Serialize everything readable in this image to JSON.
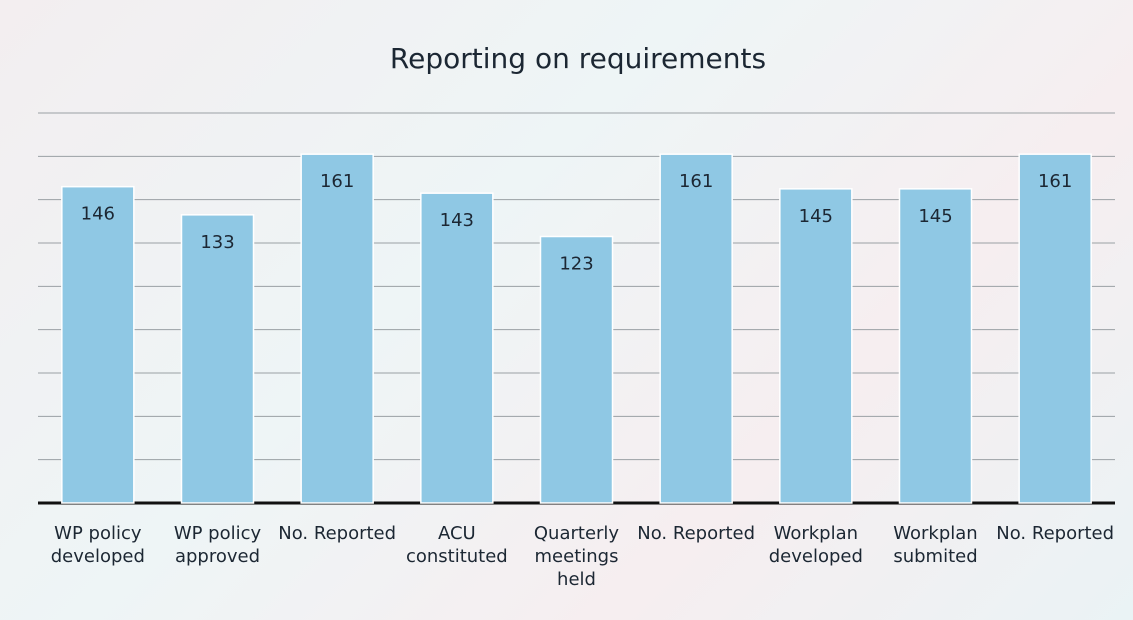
{
  "chart_data": {
    "type": "bar",
    "title": "Reporting on requirements",
    "categories": [
      "WP policy developed",
      "WP policy approved",
      "No. Reported",
      "ACU constituted",
      "Quarterly meetings held",
      "No. Reported",
      "Workplan developed",
      "Workplan submited",
      "No. Reported"
    ],
    "values": [
      146,
      133,
      161,
      143,
      123,
      161,
      145,
      145,
      161
    ],
    "color": "#8fc8e4",
    "ylim": [
      0,
      180
    ],
    "yticks": [
      0,
      20,
      40,
      60,
      80,
      100,
      120,
      140,
      160,
      180
    ],
    "grid": true
  }
}
